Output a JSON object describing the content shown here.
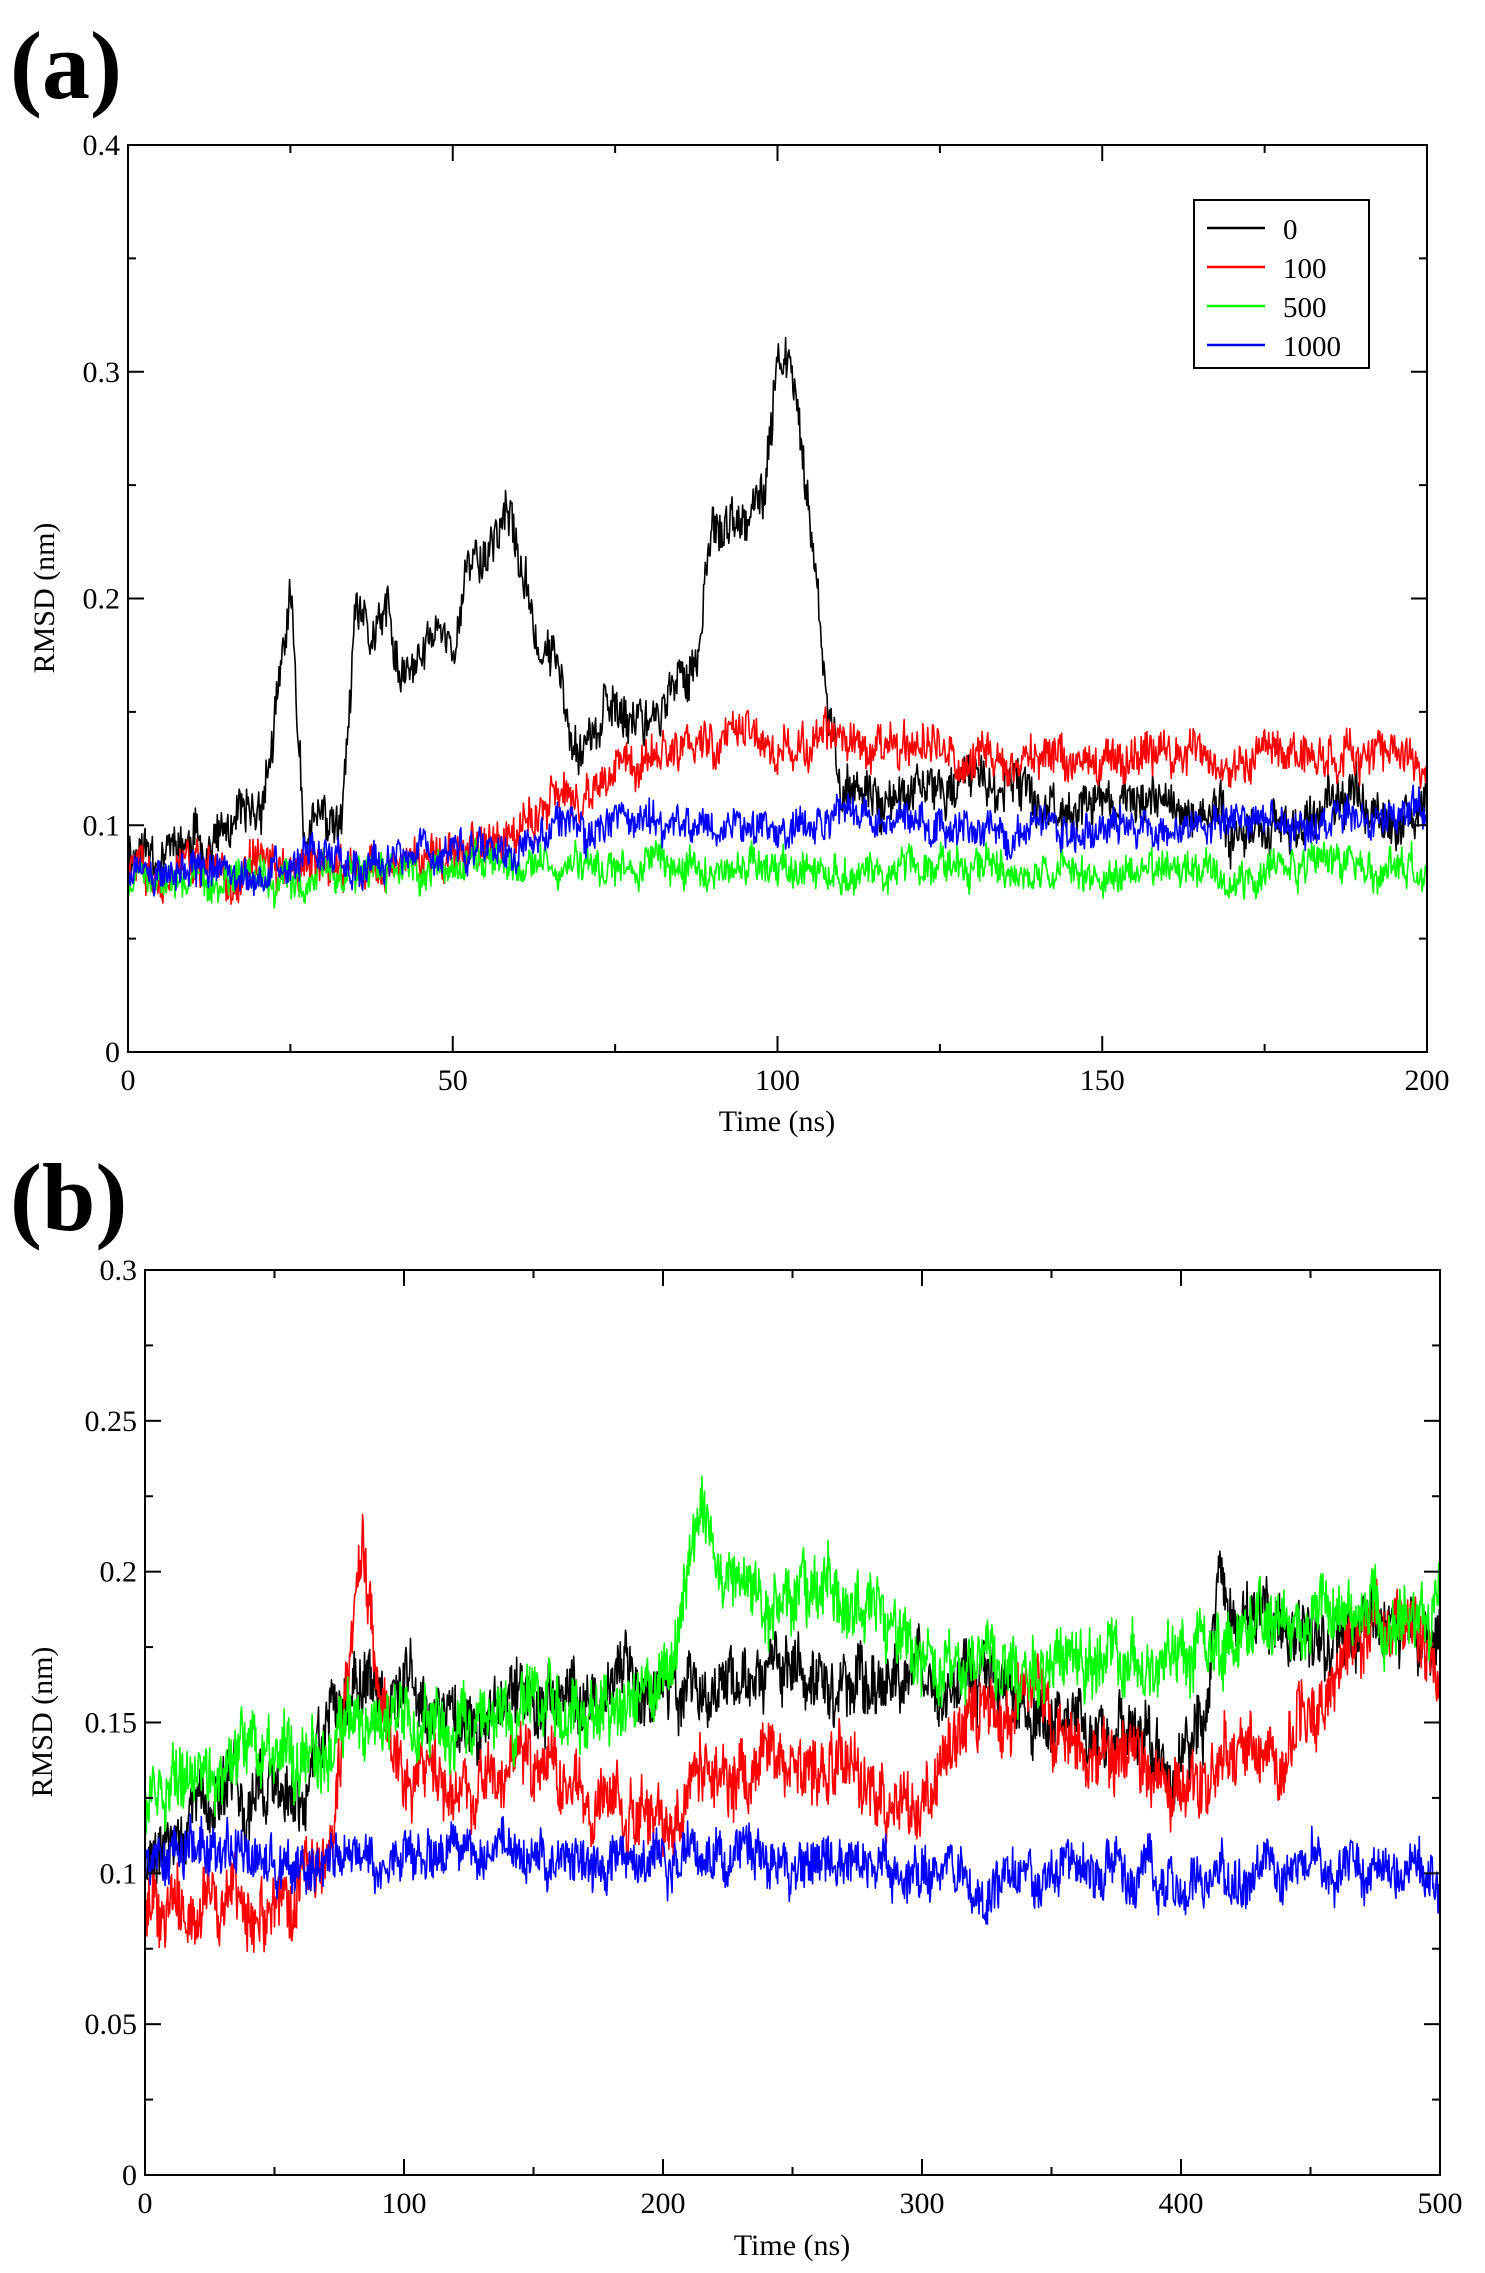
{
  "chart_data": [
    {
      "panel_label": "(a)",
      "type": "line",
      "xlabel": "Time (ns)",
      "ylabel": "RMSD (nm)",
      "xlim": [
        0,
        200
      ],
      "ylim": [
        0,
        0.4
      ],
      "xticks": [
        0,
        50,
        100,
        150,
        200
      ],
      "xtick_labels": [
        "0",
        "50",
        "100",
        "150",
        "200"
      ],
      "yticks": [
        0,
        0.1,
        0.2,
        0.3,
        0.4
      ],
      "ytick_labels": [
        "0",
        "0.1",
        "0.2",
        "0.3",
        "0.4"
      ],
      "legend_position": "top-right",
      "series": [
        {
          "name": "0",
          "color": "#000000",
          "noise": 0.008,
          "x": [
            0,
            10,
            20,
            23,
            25,
            27,
            30,
            33,
            35,
            37,
            40,
            42,
            45,
            48,
            50,
            53,
            55,
            58,
            60,
            63,
            66,
            68,
            70,
            75,
            80,
            85,
            88,
            90,
            92,
            95,
            98,
            100,
            102,
            104,
            106,
            108,
            110,
            120,
            130,
            140,
            150,
            160,
            170,
            180,
            190,
            200
          ],
          "y": [
            0.09,
            0.09,
            0.1,
            0.15,
            0.2,
            0.1,
            0.1,
            0.1,
            0.19,
            0.18,
            0.19,
            0.16,
            0.17,
            0.19,
            0.18,
            0.22,
            0.22,
            0.24,
            0.22,
            0.18,
            0.17,
            0.15,
            0.14,
            0.15,
            0.15,
            0.16,
            0.18,
            0.24,
            0.23,
            0.23,
            0.24,
            0.31,
            0.3,
            0.26,
            0.2,
            0.14,
            0.12,
            0.11,
            0.12,
            0.11,
            0.11,
            0.11,
            0.1,
            0.1,
            0.11,
            0.11
          ]
        },
        {
          "name": "100",
          "color": "#ff0000",
          "noise": 0.007,
          "x": [
            0,
            10,
            20,
            30,
            40,
            50,
            60,
            70,
            80,
            90,
            100,
            110,
            120,
            130,
            140,
            150,
            160,
            170,
            180,
            190,
            200
          ],
          "y": [
            0.08,
            0.08,
            0.08,
            0.08,
            0.085,
            0.09,
            0.1,
            0.11,
            0.13,
            0.14,
            0.135,
            0.135,
            0.13,
            0.13,
            0.13,
            0.13,
            0.13,
            0.13,
            0.13,
            0.13,
            0.13
          ]
        },
        {
          "name": "500",
          "color": "#00ff00",
          "noise": 0.006,
          "x": [
            0,
            10,
            20,
            30,
            40,
            50,
            60,
            70,
            80,
            90,
            100,
            110,
            120,
            130,
            140,
            150,
            160,
            170,
            180,
            190,
            200
          ],
          "y": [
            0.075,
            0.08,
            0.08,
            0.08,
            0.082,
            0.082,
            0.083,
            0.083,
            0.083,
            0.083,
            0.08,
            0.08,
            0.08,
            0.08,
            0.08,
            0.08,
            0.08,
            0.08,
            0.08,
            0.08,
            0.08
          ]
        },
        {
          "name": "1000",
          "color": "#0000ff",
          "noise": 0.006,
          "x": [
            0,
            10,
            20,
            30,
            40,
            50,
            60,
            70,
            80,
            90,
            100,
            110,
            120,
            130,
            140,
            150,
            160,
            170,
            180,
            190,
            200
          ],
          "y": [
            0.075,
            0.08,
            0.08,
            0.085,
            0.085,
            0.09,
            0.09,
            0.1,
            0.1,
            0.1,
            0.1,
            0.1,
            0.1,
            0.1,
            0.1,
            0.1,
            0.1,
            0.1,
            0.1,
            0.1,
            0.105
          ]
        }
      ]
    },
    {
      "panel_label": "(b)",
      "type": "line",
      "xlabel": "Time (ns)",
      "ylabel": "RMSD (nm)",
      "xlim": [
        0,
        500
      ],
      "ylim": [
        0,
        0.3
      ],
      "xticks": [
        0,
        100,
        200,
        300,
        400,
        500
      ],
      "xtick_labels": [
        "0",
        "100",
        "200",
        "300",
        "400",
        "500"
      ],
      "yticks": [
        0,
        0.05,
        0.1,
        0.15,
        0.2,
        0.25,
        0.3
      ],
      "ytick_labels": [
        "0",
        "0.05",
        "0.1",
        "0.15",
        "0.2",
        "0.25",
        "0.3"
      ],
      "series": [
        {
          "name": "0",
          "color": "#000000",
          "noise": 0.008,
          "x": [
            0,
            20,
            40,
            60,
            70,
            80,
            100,
            120,
            140,
            160,
            180,
            200,
            220,
            240,
            260,
            280,
            300,
            320,
            340,
            360,
            380,
            400,
            410,
            415,
            420,
            440,
            460,
            480,
            500
          ],
          "y": [
            0.1,
            0.12,
            0.13,
            0.12,
            0.15,
            0.165,
            0.16,
            0.155,
            0.16,
            0.155,
            0.16,
            0.165,
            0.16,
            0.17,
            0.16,
            0.16,
            0.165,
            0.165,
            0.155,
            0.15,
            0.15,
            0.14,
            0.155,
            0.2,
            0.19,
            0.18,
            0.18,
            0.18,
            0.18
          ]
        },
        {
          "name": "100",
          "color": "#ff0000",
          "noise": 0.008,
          "x": [
            0,
            20,
            40,
            60,
            70,
            75,
            80,
            84,
            90,
            100,
            110,
            130,
            150,
            180,
            200,
            220,
            240,
            260,
            280,
            300,
            320,
            340,
            360,
            380,
            400,
            420,
            440,
            460,
            480,
            500
          ],
          "y": [
            0.09,
            0.09,
            0.09,
            0.09,
            0.1,
            0.14,
            0.18,
            0.21,
            0.17,
            0.13,
            0.13,
            0.13,
            0.135,
            0.12,
            0.12,
            0.135,
            0.14,
            0.135,
            0.13,
            0.12,
            0.155,
            0.16,
            0.14,
            0.135,
            0.13,
            0.14,
            0.14,
            0.17,
            0.185,
            0.17
          ]
        },
        {
          "name": "500",
          "color": "#00ff00",
          "noise": 0.008,
          "x": [
            0,
            20,
            40,
            60,
            80,
            100,
            120,
            140,
            160,
            180,
            200,
            210,
            215,
            220,
            240,
            260,
            280,
            300,
            320,
            340,
            360,
            380,
            400,
            420,
            440,
            460,
            480,
            500
          ],
          "y": [
            0.12,
            0.135,
            0.145,
            0.14,
            0.15,
            0.15,
            0.15,
            0.155,
            0.155,
            0.15,
            0.16,
            0.19,
            0.22,
            0.195,
            0.19,
            0.195,
            0.185,
            0.175,
            0.17,
            0.165,
            0.175,
            0.17,
            0.175,
            0.175,
            0.18,
            0.185,
            0.185,
            0.19
          ]
        },
        {
          "name": "1000",
          "color": "#0000ff",
          "noise": 0.006,
          "x": [
            0,
            20,
            40,
            60,
            80,
            100,
            150,
            200,
            250,
            300,
            350,
            400,
            450,
            500
          ],
          "y": [
            0.1,
            0.11,
            0.105,
            0.1,
            0.105,
            0.105,
            0.105,
            0.105,
            0.105,
            0.1,
            0.1,
            0.1,
            0.1,
            0.1
          ]
        }
      ]
    }
  ]
}
